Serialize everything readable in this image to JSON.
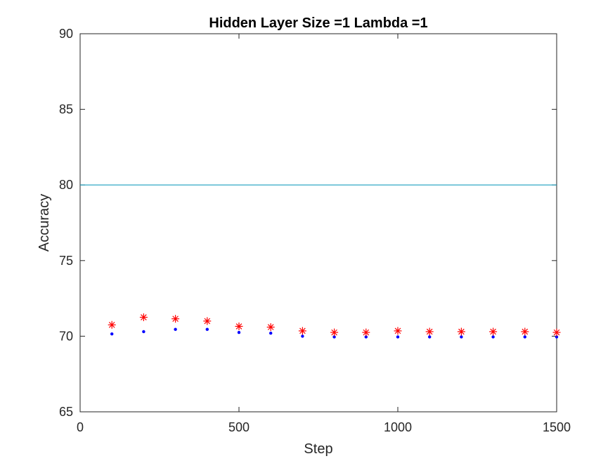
{
  "chart_data": {
    "type": "scatter",
    "title": "Hidden Layer Size =1 Lambda =1",
    "xlabel": "Step",
    "ylabel": "Accuracy",
    "xlim": [
      0,
      1500
    ],
    "ylim": [
      65,
      90
    ],
    "xticks": [
      0,
      500,
      1000,
      1500
    ],
    "yticks": [
      65,
      70,
      75,
      80,
      85,
      90
    ],
    "grid": false,
    "legend": "none",
    "reference_line": {
      "y": 80,
      "color": "#1a9fbf"
    },
    "series": [
      {
        "marker": "dot",
        "color": "#0000ff",
        "x": [
          100,
          200,
          300,
          400,
          500,
          600,
          700,
          800,
          900,
          1000,
          1100,
          1200,
          1300,
          1400,
          1500
        ],
        "y": [
          70.15,
          70.3,
          70.45,
          70.45,
          70.25,
          70.2,
          70.0,
          69.95,
          69.95,
          69.95,
          69.95,
          69.95,
          69.95,
          69.95,
          69.95
        ]
      },
      {
        "marker": "asterisk",
        "color": "#ff0000",
        "x": [
          100,
          200,
          300,
          400,
          500,
          600,
          700,
          800,
          900,
          1000,
          1100,
          1200,
          1300,
          1400,
          1500
        ],
        "y": [
          70.75,
          71.25,
          71.15,
          71.0,
          70.65,
          70.6,
          70.35,
          70.25,
          70.25,
          70.35,
          70.3,
          70.3,
          70.3,
          70.3,
          70.25
        ]
      }
    ]
  }
}
